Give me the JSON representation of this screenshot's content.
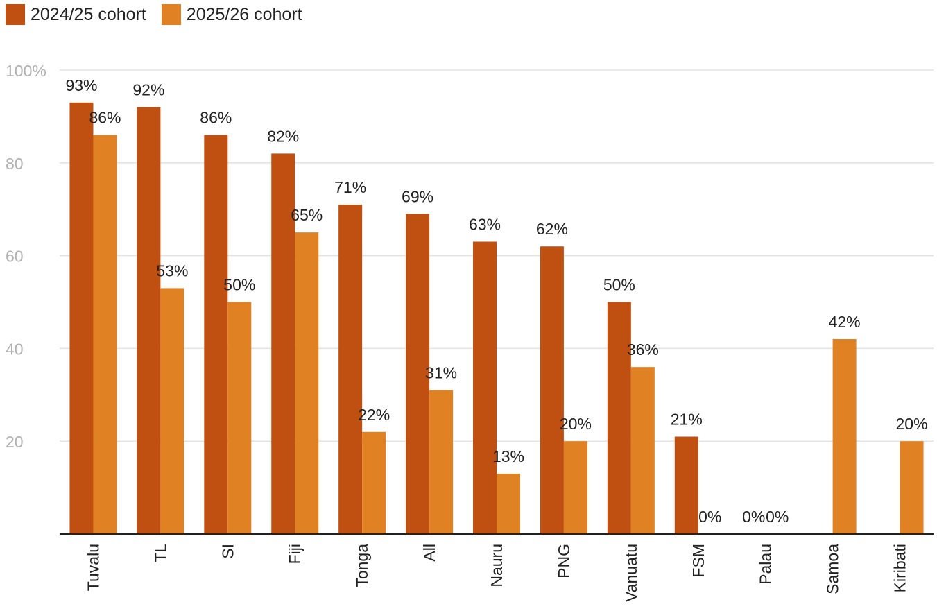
{
  "colors": {
    "series_a": "#c05011",
    "series_b": "#e08123",
    "grid": "#e3e3e3",
    "tick_text": "#b0b0b0",
    "label_text": "#222222",
    "axis_line": "#222222"
  },
  "chart_data": {
    "type": "bar",
    "title": "",
    "xlabel": "",
    "ylabel": "",
    "ylim": [
      0,
      100
    ],
    "yticks": [
      20,
      40,
      60,
      80,
      100
    ],
    "ytick_labels": [
      "20",
      "40",
      "60",
      "80",
      "100%"
    ],
    "grid": true,
    "legend_position": "top-left",
    "categories": [
      "Tuvalu",
      "TL",
      "SI",
      "Fiji",
      "Tonga",
      "All",
      "Nauru",
      "PNG",
      "Vanuatu",
      "FSM",
      "Palau",
      "Samoa",
      "Kiribati"
    ],
    "series": [
      {
        "name": "2024/25 cohort",
        "values": [
          93,
          92,
          86,
          82,
          71,
          69,
          63,
          62,
          50,
          21,
          0,
          null,
          null
        ],
        "labels": [
          "93%",
          "92%",
          "86%",
          "82%",
          "71%",
          "69%",
          "63%",
          "62%",
          "50%",
          "21%",
          "0%",
          "",
          ""
        ]
      },
      {
        "name": "2025/26 cohort",
        "values": [
          86,
          53,
          50,
          65,
          22,
          31,
          13,
          20,
          36,
          0,
          0,
          42,
          20
        ],
        "labels": [
          "86%",
          "53%",
          "50%",
          "65%",
          "22%",
          "31%",
          "13%",
          "20%",
          "36%",
          "0%",
          "0%",
          "42%",
          "20%"
        ]
      }
    ]
  }
}
